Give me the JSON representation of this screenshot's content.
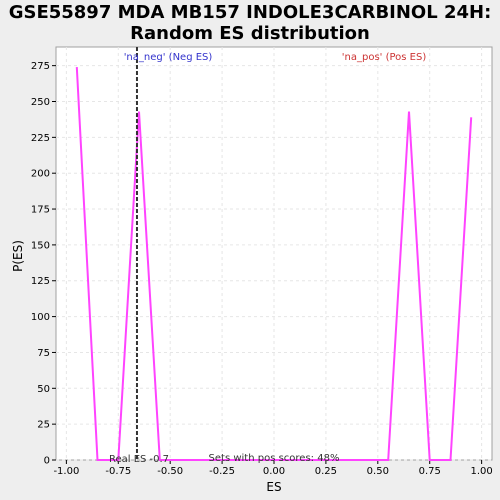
{
  "chart_data": {
    "type": "line",
    "title_line1": "GSE55897 MDA MB157 INDOLE3CARBINOL 24H:",
    "title_line2": "Random ES distribution",
    "xlabel": "ES",
    "ylabel": "P(ES)",
    "xlim": [
      -1.05,
      1.05
    ],
    "ylim": [
      0,
      288
    ],
    "x_ticks": [
      -1.0,
      -0.75,
      -0.5,
      -0.25,
      0.0,
      0.25,
      0.5,
      0.75,
      1.0
    ],
    "x_tick_labels": [
      "-1.00",
      "-0.75",
      "-0.50",
      "-0.25",
      "0.00",
      "0.25",
      "0.50",
      "0.75",
      "1.00"
    ],
    "y_ticks": [
      0,
      25,
      50,
      75,
      100,
      125,
      150,
      175,
      200,
      225,
      250,
      275
    ],
    "y_tick_labels": [
      "0",
      "25",
      "50",
      "75",
      "100",
      "125",
      "150",
      "175",
      "200",
      "225",
      "250",
      "275"
    ],
    "grid": true,
    "series": [
      {
        "color": "#ff44ff",
        "x": [
          -0.95,
          -0.85,
          -0.75,
          -0.65,
          -0.55,
          -0.45,
          -0.35,
          -0.25,
          -0.15,
          -0.05,
          0.05,
          0.15,
          0.25,
          0.35,
          0.45,
          0.55,
          0.65,
          0.75,
          0.85,
          0.95
        ],
        "y": [
          274,
          0,
          0,
          243,
          0,
          0,
          0,
          0,
          0,
          0,
          0,
          0,
          0,
          0,
          0,
          0,
          243,
          0,
          0,
          239
        ]
      }
    ],
    "real_es": -0.66,
    "real_es_label": "Real ES -0.7",
    "neg_label": "'na_neg' (Neg ES)",
    "pos_label": "'na_pos' (Pos ES)",
    "footer": "Sets with pos scores: 48%",
    "colors": {
      "neg_label": "#3333cc",
      "pos_label": "#cc3333",
      "line": "#ff44ff",
      "real_es_line": "#333333",
      "grid": "#e6e6e6"
    }
  }
}
